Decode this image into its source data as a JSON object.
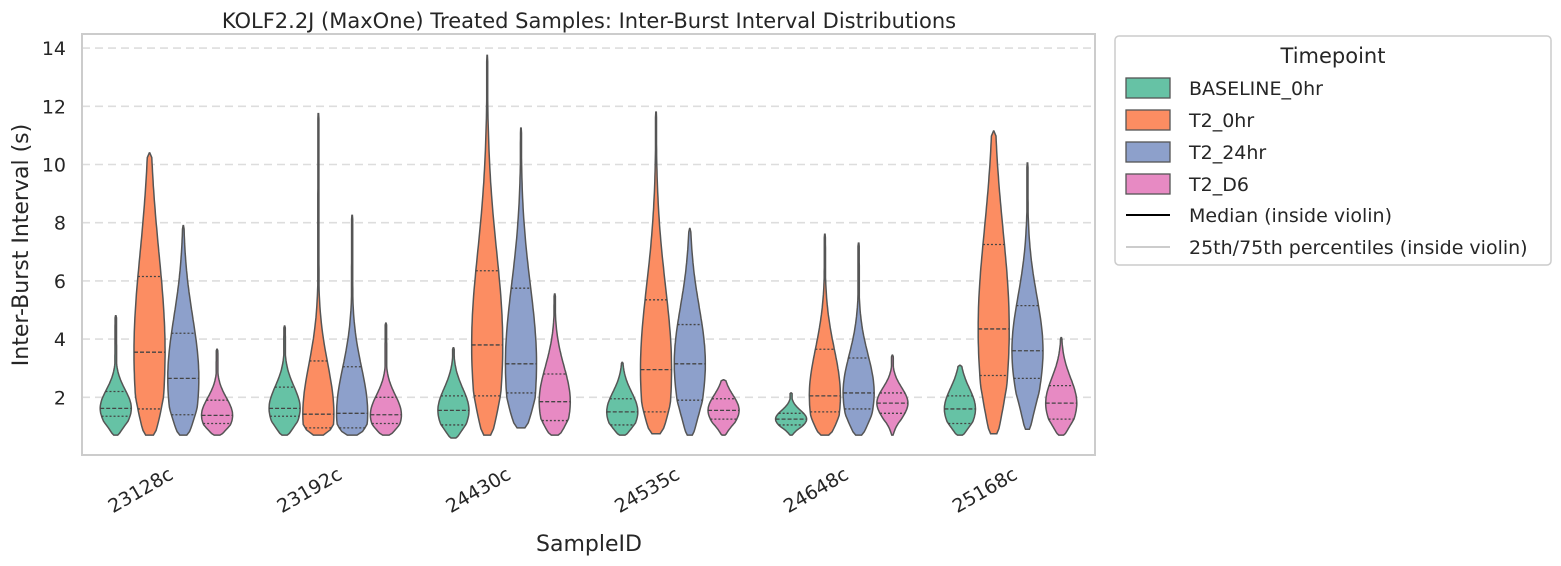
{
  "chart_data": {
    "type": "violin",
    "title": "KOLF2.2J (MaxOne) Treated Samples: Inter-Burst Interval Distributions",
    "xlabel": "SampleID",
    "ylabel": "Inter-Burst Interval (s)",
    "ylim": [
      0,
      14.4
    ],
    "yticks": [
      2,
      4,
      6,
      8,
      10,
      12,
      14
    ],
    "grid": "horizontal-dashed",
    "categories": [
      "23128c",
      "23192c",
      "24430c",
      "24535c",
      "24648c",
      "25168c"
    ],
    "legend": {
      "title": "Timepoint",
      "placement": "outside-right",
      "entries": [
        "BASELINE_0hr",
        "T2_0hr",
        "T2_24hr",
        "T2_D6"
      ],
      "line_entries": [
        "Median (inside violin)",
        "25th/75th percentiles (inside violin)"
      ]
    },
    "series": [
      {
        "name": "BASELINE_0hr",
        "color": "#66c2a5",
        "stats": [
          {
            "min": 0.7,
            "q1": 1.35,
            "median": 1.62,
            "q3": 2.2,
            "max": 4.8
          },
          {
            "min": 0.7,
            "q1": 1.35,
            "median": 1.62,
            "q3": 2.35,
            "max": 4.45
          },
          {
            "min": 0.6,
            "q1": 1.05,
            "median": 1.55,
            "q3": 2.05,
            "max": 3.7
          },
          {
            "min": 0.7,
            "q1": 1.05,
            "median": 1.5,
            "q3": 1.95,
            "max": 3.2
          },
          {
            "min": 0.7,
            "q1": 1.05,
            "median": 1.25,
            "q3": 1.45,
            "max": 2.15
          },
          {
            "min": 0.7,
            "q1": 1.1,
            "median": 1.6,
            "q3": 2.05,
            "max": 3.1
          }
        ]
      },
      {
        "name": "T2_0hr",
        "color": "#fc8d62",
        "stats": [
          {
            "min": 0.7,
            "q1": 1.6,
            "median": 3.55,
            "q3": 6.15,
            "max": 10.4
          },
          {
            "min": 0.7,
            "q1": 0.95,
            "median": 1.42,
            "q3": 3.25,
            "max": 11.75
          },
          {
            "min": 0.7,
            "q1": 2.05,
            "median": 3.8,
            "q3": 6.35,
            "max": 13.75
          },
          {
            "min": 0.75,
            "q1": 1.5,
            "median": 2.95,
            "q3": 5.35,
            "max": 11.8
          },
          {
            "min": 0.7,
            "q1": 1.5,
            "median": 2.05,
            "q3": 3.65,
            "max": 7.6
          },
          {
            "min": 0.75,
            "q1": 2.75,
            "median": 4.35,
            "q3": 7.25,
            "max": 11.15
          }
        ]
      },
      {
        "name": "T2_24hr",
        "color": "#8da0cb",
        "stats": [
          {
            "min": 0.7,
            "q1": 1.4,
            "median": 2.65,
            "q3": 4.2,
            "max": 7.9
          },
          {
            "min": 0.7,
            "q1": 0.95,
            "median": 1.45,
            "q3": 3.05,
            "max": 8.25
          },
          {
            "min": 0.95,
            "q1": 2.15,
            "median": 3.15,
            "q3": 5.75,
            "max": 11.25
          },
          {
            "min": 0.7,
            "q1": 1.9,
            "median": 3.15,
            "q3": 4.5,
            "max": 7.8
          },
          {
            "min": 0.7,
            "q1": 1.6,
            "median": 2.15,
            "q3": 3.35,
            "max": 7.3
          },
          {
            "min": 0.9,
            "q1": 2.65,
            "median": 3.6,
            "q3": 5.15,
            "max": 10.05
          }
        ]
      },
      {
        "name": "T2_D6",
        "color": "#e78ac3",
        "stats": [
          {
            "min": 0.7,
            "q1": 1.1,
            "median": 1.38,
            "q3": 1.9,
            "max": 3.65
          },
          {
            "min": 0.7,
            "q1": 1.1,
            "median": 1.4,
            "q3": 2.0,
            "max": 4.55
          },
          {
            "min": 0.7,
            "q1": 1.2,
            "median": 1.85,
            "q3": 2.8,
            "max": 5.55
          },
          {
            "min": 0.7,
            "q1": 1.25,
            "median": 1.55,
            "q3": 1.95,
            "max": 2.6
          },
          {
            "min": 0.7,
            "q1": 1.45,
            "median": 1.8,
            "q3": 2.15,
            "max": 3.45
          },
          {
            "min": 0.7,
            "q1": 1.25,
            "median": 1.8,
            "q3": 2.4,
            "max": 4.05
          }
        ]
      }
    ]
  }
}
